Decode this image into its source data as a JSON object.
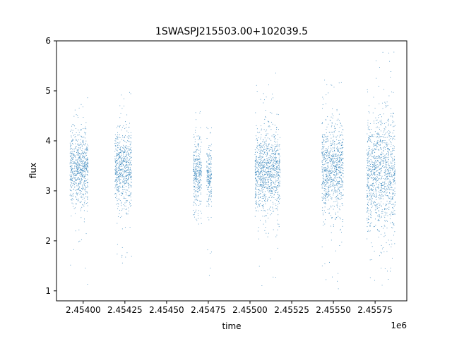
{
  "chart_data": {
    "type": "scatter",
    "title": "1SWASPJ215503.00+102039.5",
    "xlabel": "time",
    "ylabel": "flux",
    "x_offset_label": "1e6",
    "xlim": [
      2.45384,
      2.45594
    ],
    "ylim": [
      0.8,
      6.0
    ],
    "x_ticks": [
      2.454,
      2.45425,
      2.4545,
      2.45475,
      2.455,
      2.45525,
      2.4555,
      2.45575
    ],
    "x_tick_labels": [
      "2.45400",
      "2.45425",
      "2.45450",
      "2.45475",
      "2.45500",
      "2.45525",
      "2.45550",
      "2.45575"
    ],
    "y_ticks": [
      1,
      2,
      3,
      4,
      5,
      6
    ],
    "y_tick_labels": [
      "1",
      "2",
      "3",
      "4",
      "5",
      "6"
    ],
    "grid": false,
    "marker_color": "#1f77b4",
    "clusters": [
      {
        "x_start": 2.45392,
        "x_end": 2.45403,
        "core_low": 2.7,
        "core_high": 4.2,
        "min": 1.1,
        "max": 4.9
      },
      {
        "x_start": 2.45419,
        "x_end": 2.45429,
        "core_low": 2.7,
        "core_high": 4.2,
        "min": 1.5,
        "max": 5.2
      },
      {
        "x_start": 2.45466,
        "x_end": 2.45471,
        "core_low": 2.7,
        "core_high": 4.0,
        "min": 2.3,
        "max": 4.6
      },
      {
        "x_start": 2.45474,
        "x_end": 2.45477,
        "core_low": 2.7,
        "core_high": 4.0,
        "min": 1.3,
        "max": 4.4
      },
      {
        "x_start": 2.45503,
        "x_end": 2.45518,
        "core_low": 2.6,
        "core_high": 4.2,
        "min": 1.0,
        "max": 5.4
      },
      {
        "x_start": 2.45543,
        "x_end": 2.45556,
        "core_low": 2.6,
        "core_high": 4.3,
        "min": 1.0,
        "max": 5.4
      },
      {
        "x_start": 2.4557,
        "x_end": 2.45587,
        "core_low": 2.2,
        "core_high": 4.5,
        "min": 1.1,
        "max": 5.8
      }
    ]
  }
}
